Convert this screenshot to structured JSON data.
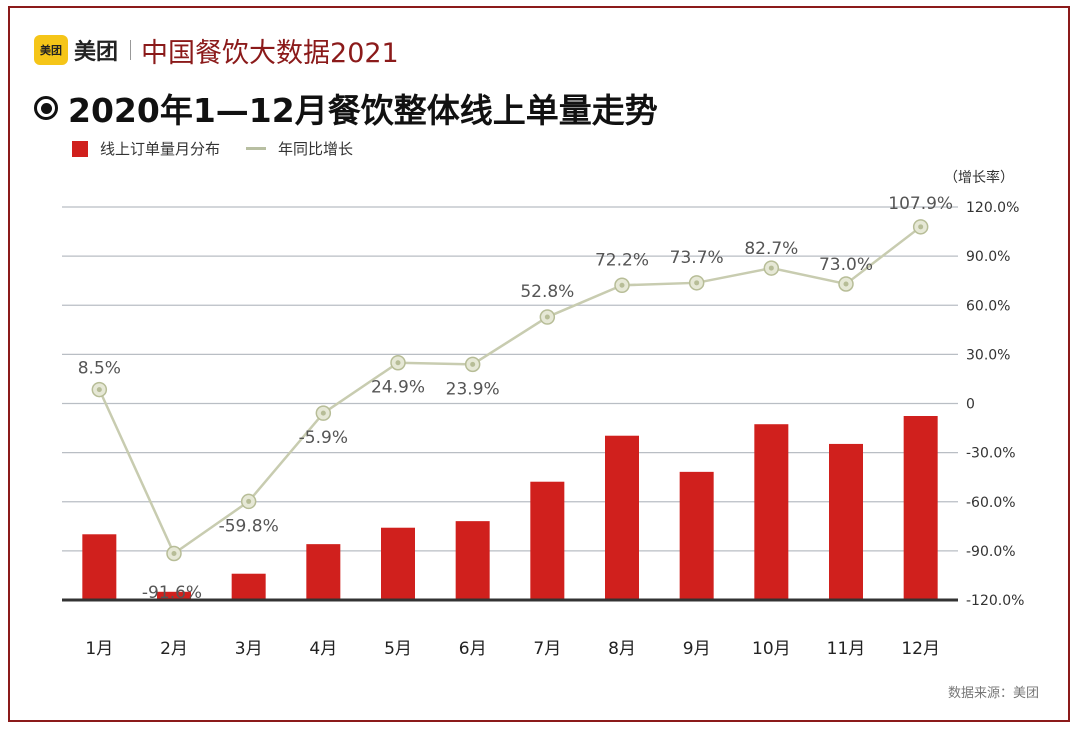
{
  "header": {
    "brand_logo_text": "美团",
    "brand_name": "美团",
    "brand_title": "中国餐饮大数据2021",
    "chart_title": "2020年1—12月餐饮整体线上单量走势"
  },
  "legend": {
    "bar_label": "线上订单量月分布",
    "line_label": "年同比增长"
  },
  "y_axis_right_label": "（增长率）",
  "source_note": "数据来源：美团",
  "colors": {
    "bar": "#d0201d",
    "line": "#c8ccb0",
    "marker_fill": "#e6e8d6",
    "marker_stroke": "#b7bd97",
    "title_accent": "#8b1a1a",
    "gridline": "#b9bec4",
    "baseline": "#333333"
  },
  "chart_data": {
    "type": "bar",
    "categories": [
      "1月",
      "2月",
      "3月",
      "4月",
      "5月",
      "6月",
      "7月",
      "8月",
      "9月",
      "10月",
      "11月",
      "12月"
    ],
    "series": [
      {
        "name": "线上订单量月分布",
        "type": "bar",
        "values": [
          40,
          5,
          16,
          34,
          44,
          48,
          72,
          100,
          78,
          107,
          95,
          112
        ],
        "note": "relative heights, no printed values"
      },
      {
        "name": "年同比增长",
        "type": "line",
        "values": [
          8.5,
          -91.6,
          -59.8,
          -5.9,
          24.9,
          23.9,
          52.8,
          72.2,
          73.7,
          82.7,
          73.0,
          107.9
        ],
        "labels": [
          "8.5%",
          "-91.6%",
          "-59.8%",
          "-5.9%",
          "24.9%",
          "23.9%",
          "52.8%",
          "72.2%",
          "73.7%",
          "82.7%",
          "73.0%",
          "107.9%"
        ]
      }
    ],
    "y_right_ticks": [
      "120.0%",
      "90.0%",
      "60.0%",
      "30.0%",
      "0",
      "-30.0%",
      "-60.0%",
      "-90.0%",
      "-120.0%"
    ],
    "y_right_values": [
      120,
      90,
      60,
      30,
      0,
      -30,
      -60,
      -90,
      -120
    ],
    "ylim": [
      -120,
      120
    ],
    "grid": true
  }
}
